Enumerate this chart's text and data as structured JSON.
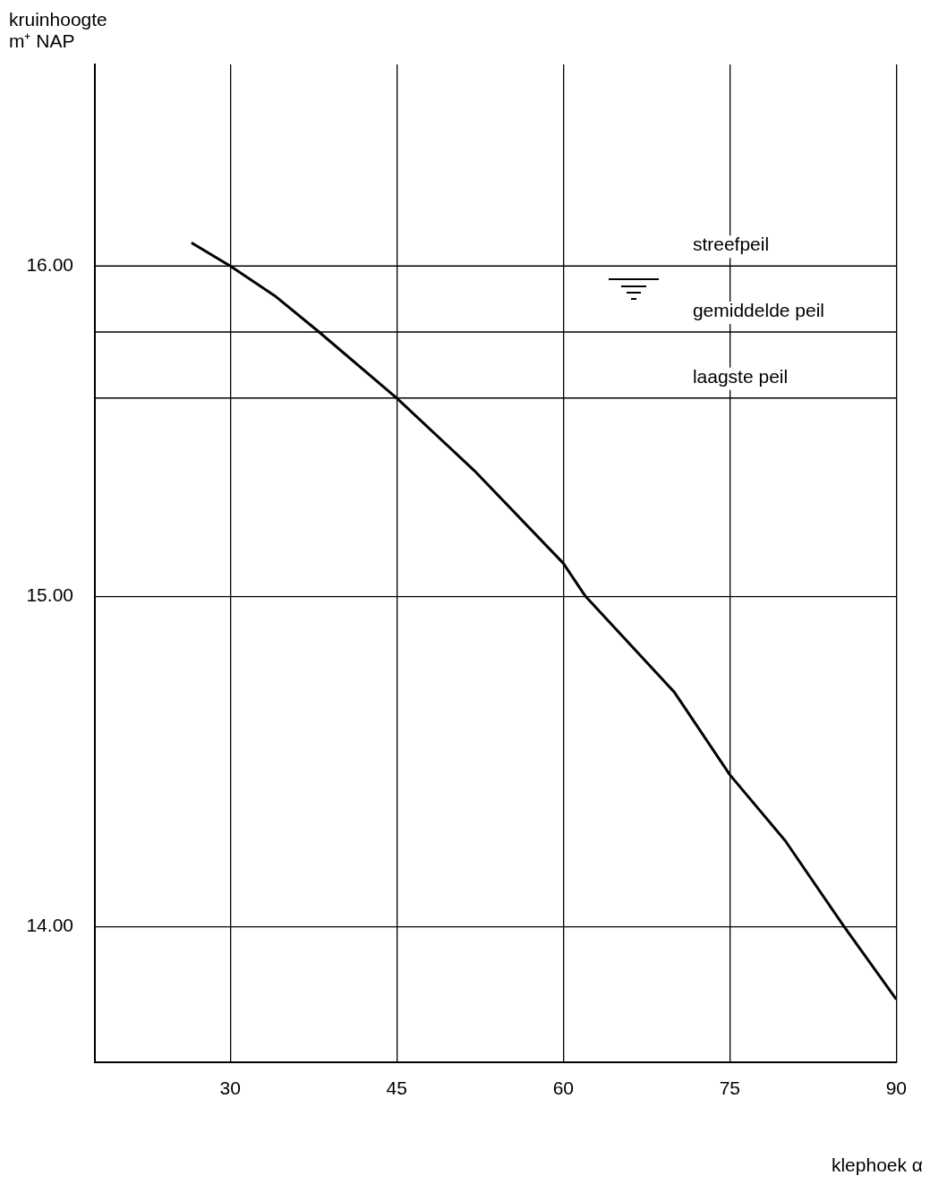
{
  "chart_data": {
    "type": "line",
    "xlabel": "klephoek α",
    "ylabel": "kruinhoogte\nm⁺ NAP",
    "series": [
      {
        "color": "#000000",
        "x": [
          26.5,
          30,
          34,
          38,
          45,
          52,
          60,
          62,
          70,
          75,
          80,
          85.3,
          90
        ],
        "values": [
          16.07,
          16.0,
          15.91,
          15.8,
          15.6,
          15.38,
          15.1,
          15.0,
          14.71,
          14.46,
          14.26,
          14.0,
          13.78
        ]
      }
    ],
    "xlim": [
      17.8,
      90
    ],
    "xticks": [
      30,
      45,
      60,
      75,
      90
    ],
    "ylim": [
      13.59,
      16.61
    ],
    "yticks": [
      {
        "value": 14,
        "label": "14.00"
      },
      {
        "value": 15,
        "label": "15.00"
      },
      {
        "value": 16,
        "label": "16.00"
      }
    ],
    "ref_lines": [
      {
        "axis": "y",
        "value": 16.0,
        "label": "streefpeil"
      },
      {
        "axis": "y",
        "value": 15.8,
        "label": "gemiddelde peil"
      },
      {
        "axis": "y",
        "value": 15.6,
        "label": "laagste peil"
      }
    ],
    "grid": true,
    "legend": false,
    "marker": "none",
    "line_style": "solid"
  }
}
